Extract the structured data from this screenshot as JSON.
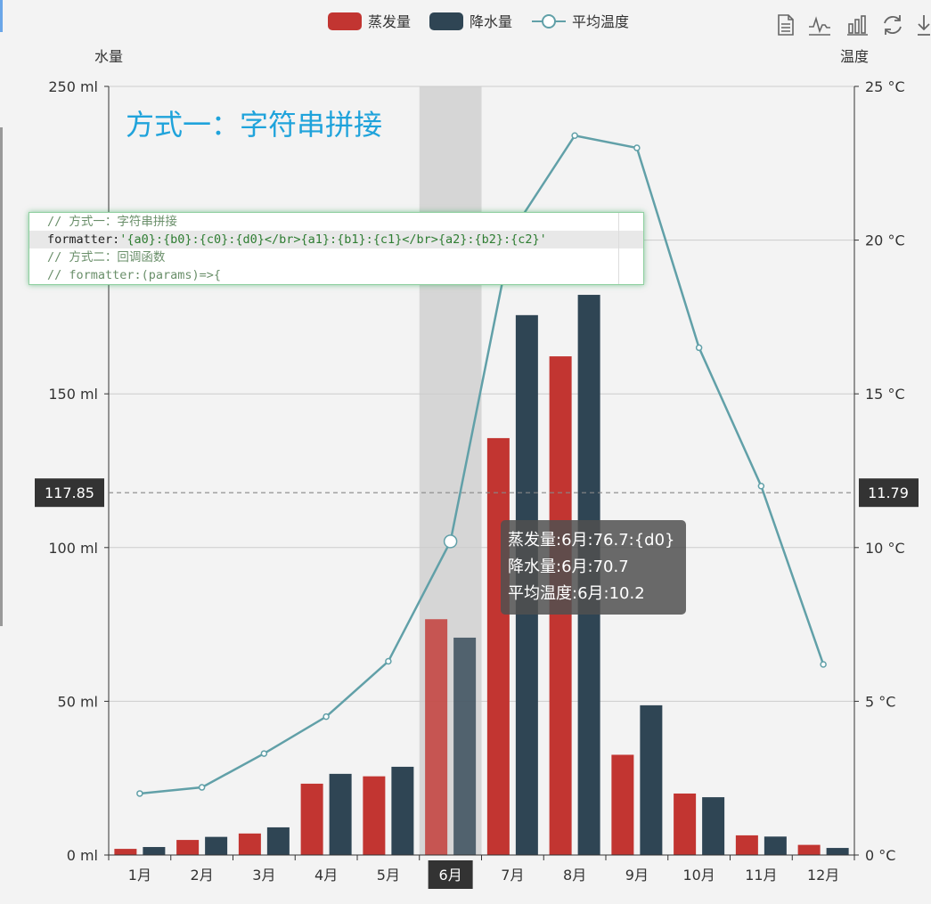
{
  "legend": {
    "items": [
      {
        "name": "蒸发量",
        "color": "#c23531",
        "kind": "bar"
      },
      {
        "name": "降水量",
        "color": "#2f4554",
        "kind": "bar"
      },
      {
        "name": "平均温度",
        "color": "#61a0a8",
        "kind": "line"
      }
    ]
  },
  "toolbar": {
    "icons": [
      "data-view-icon",
      "line-chart-icon",
      "bar-chart-icon",
      "restore-icon",
      "save-image-icon"
    ]
  },
  "title_text": "方式一：字符串拼接",
  "code_editor": {
    "lines": [
      "// 方式一：字符串拼接",
      "formatter:'{a0}:{b0}:{c0}:{d0}</br>{a1}:{b1}:{c1}</br>{a2}:{b2}:{c2}'",
      "// 方式二：回调函数",
      "// formatter:(params)=>{"
    ]
  },
  "tooltip": {
    "lines": [
      "蒸发量:6月:76.7:{d0}",
      "降水量:6月:70.7",
      "平均温度:6月:10.2"
    ]
  },
  "chart_data": {
    "type": "bar",
    "categories": [
      "1月",
      "2月",
      "3月",
      "4月",
      "5月",
      "6月",
      "7月",
      "8月",
      "9月",
      "10月",
      "11月",
      "12月"
    ],
    "series": [
      {
        "name": "蒸发量",
        "type": "bar",
        "axis": "left",
        "color": "#c23531",
        "values": [
          2.0,
          4.9,
          7.0,
          23.2,
          25.6,
          76.7,
          135.6,
          162.2,
          32.6,
          20.0,
          6.4,
          3.3
        ]
      },
      {
        "name": "降水量",
        "type": "bar",
        "axis": "left",
        "color": "#2f4554",
        "values": [
          2.6,
          5.9,
          9.0,
          26.4,
          28.7,
          70.7,
          175.6,
          182.2,
          48.7,
          18.8,
          6.0,
          2.3
        ]
      },
      {
        "name": "平均温度",
        "type": "line",
        "axis": "right",
        "color": "#61a0a8",
        "values": [
          2.0,
          2.2,
          3.3,
          4.5,
          6.3,
          10.2,
          20.3,
          23.4,
          23.0,
          16.5,
          12.0,
          6.2
        ]
      }
    ],
    "y_left": {
      "name": "水量",
      "min": 0,
      "max": 250,
      "interval": 50,
      "unit": " ml",
      "ticks": [
        "0 ml",
        "50 ml",
        "100 ml",
        "150 ml",
        "200 ml",
        "250 ml"
      ]
    },
    "y_right": {
      "name": "温度",
      "min": 0,
      "max": 25,
      "interval": 5,
      "unit": " °C",
      "ticks": [
        "0 °C",
        "5 °C",
        "10 °C",
        "15 °C",
        "20 °C",
        "25 °C"
      ]
    },
    "axis_pointer": {
      "category": "6月",
      "left_label": "117.85",
      "right_label": "11.79"
    },
    "grid": true,
    "legend_position": "top-center"
  }
}
